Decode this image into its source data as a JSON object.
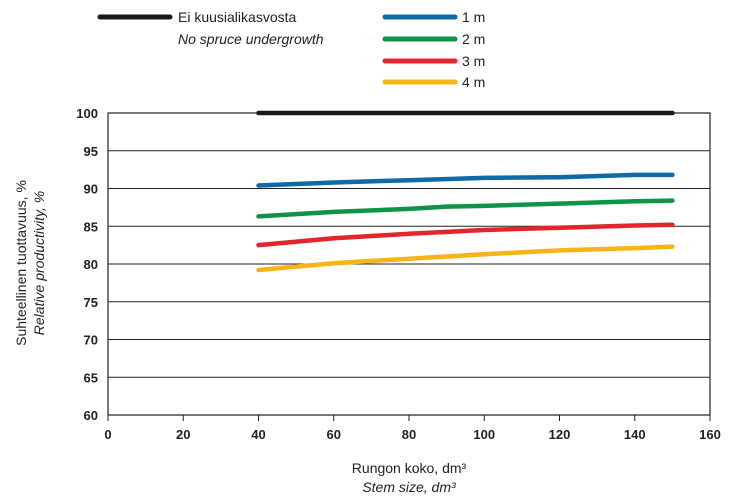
{
  "chart_data": {
    "type": "line",
    "title": "",
    "xlabel": "Rungon koko, dm³",
    "xlabel_en": "Stem size, dm³",
    "ylabel": "Suhteellinen tuottavuus, %",
    "ylabel_en": "Relative productivity, %",
    "xlim": [
      0,
      160
    ],
    "ylim": [
      60,
      100
    ],
    "x_ticks": [
      "0",
      "20",
      "40",
      "60",
      "80",
      "100",
      "120",
      "140",
      "160"
    ],
    "y_ticks": [
      "100",
      "95",
      "90",
      "85",
      "80",
      "75",
      "70",
      "65",
      "60"
    ],
    "grid": "horizontal",
    "legend_position": "top",
    "series": [
      {
        "name": "Ei kuusialikasvosta",
        "name_en": "No spruce undergrowth",
        "color": "#1a1a1a",
        "x": [
          40,
          150
        ],
        "y": [
          100,
          100
        ]
      },
      {
        "name": "1 m",
        "color": "#0f6aa8",
        "x": [
          40,
          60,
          80,
          100,
          120,
          140,
          150
        ],
        "y": [
          90.4,
          90.8,
          91.1,
          91.4,
          91.5,
          91.8,
          91.8
        ]
      },
      {
        "name": "2 m",
        "color": "#0e9447",
        "x": [
          40,
          60,
          80,
          90,
          100,
          120,
          140,
          150
        ],
        "y": [
          86.3,
          86.9,
          87.3,
          87.6,
          87.7,
          88.0,
          88.3,
          88.4
        ]
      },
      {
        "name": "3 m",
        "color": "#e2262c",
        "x": [
          40,
          60,
          80,
          100,
          120,
          140,
          150
        ],
        "y": [
          82.5,
          83.4,
          84.0,
          84.5,
          84.8,
          85.1,
          85.2
        ]
      },
      {
        "name": "4 m",
        "color": "#f7b416",
        "x": [
          40,
          60,
          80,
          100,
          120,
          140,
          150
        ],
        "y": [
          79.2,
          80.1,
          80.7,
          81.3,
          81.8,
          82.1,
          82.3
        ]
      }
    ]
  }
}
